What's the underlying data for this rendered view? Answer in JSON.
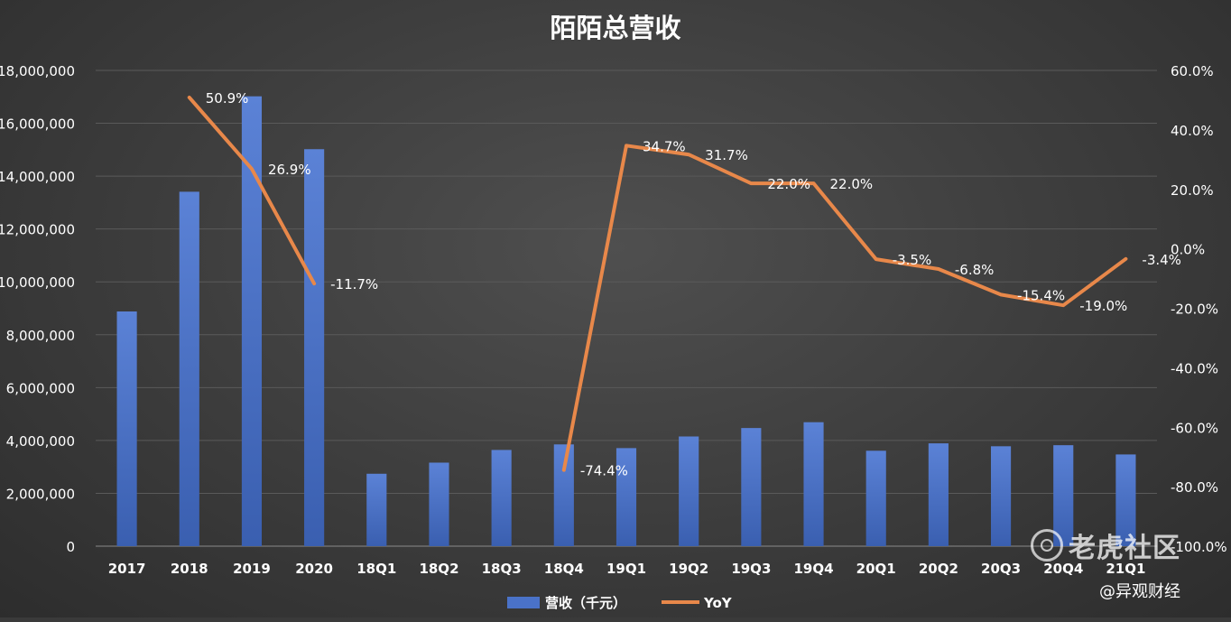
{
  "chart_data": {
    "type": "bar",
    "title": "陌陌总营收",
    "categories": [
      "2017",
      "2018",
      "2019",
      "2020",
      "18Q1",
      "18Q2",
      "18Q3",
      "18Q4",
      "19Q1",
      "19Q2",
      "19Q3",
      "19Q4",
      "20Q1",
      "20Q2",
      "20Q3",
      "20Q4",
      "21Q1"
    ],
    "series": [
      {
        "name": "营收（千元）",
        "type": "bar",
        "axis": "left",
        "color": "#4a72c8",
        "values": [
          8880000,
          13410000,
          17020000,
          15020000,
          2740000,
          3160000,
          3640000,
          3850000,
          3710000,
          4150000,
          4470000,
          4690000,
          3610000,
          3890000,
          3780000,
          3820000,
          3470000
        ]
      },
      {
        "name": "YoY",
        "type": "line",
        "axis": "right",
        "color": "#e8884a",
        "values": [
          null,
          50.9,
          26.9,
          -11.7,
          null,
          null,
          null,
          -74.4,
          34.7,
          31.7,
          22.0,
          22.0,
          -3.5,
          -6.8,
          -15.4,
          -19.0,
          -3.4
        ],
        "labels": [
          "",
          "50.9%",
          "26.9%",
          "-11.7%",
          "",
          "",
          "",
          "-74.4%",
          "34.7%",
          "31.7%",
          "22.0%",
          "22.0%",
          "-3.5%",
          "-6.8%",
          "-15.4%",
          "-19.0%",
          "-3.4%"
        ]
      }
    ],
    "y_left": {
      "min": 0,
      "max": 18000000,
      "step": 2000000,
      "tick_labels": [
        "0",
        "2,000,000",
        "4,000,000",
        "6,000,000",
        "8,000,000",
        "10,000,000",
        "12,000,000",
        "14,000,000",
        "16,000,000",
        "18,000,000"
      ]
    },
    "y_right": {
      "min": -100,
      "max": 60,
      "step": 20,
      "tick_labels": [
        "-100.0%",
        "-80.0%",
        "-60.0%",
        "-40.0%",
        "-20.0%",
        "0.0%",
        "20.0%",
        "40.0%",
        "60.0%"
      ]
    },
    "grid": true,
    "legend": "bottom-center"
  },
  "watermark": {
    "text": "老虎社区",
    "icon": "tiger-community-logo-icon"
  },
  "source": "@异观财经"
}
